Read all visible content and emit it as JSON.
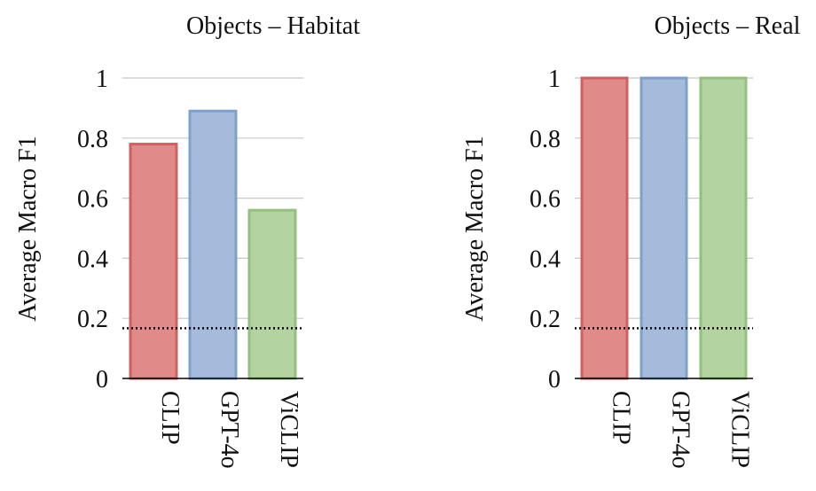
{
  "chart_data": [
    {
      "type": "bar",
      "title": "Objects – Habitat",
      "ylabel": "Average Macro F1",
      "xlabel": "",
      "categories": [
        "CLIP",
        "GPT-4o",
        "ViCLIP"
      ],
      "values": [
        0.78,
        0.89,
        0.56
      ],
      "ylim": [
        0,
        1
      ],
      "yticks": [
        0,
        0.2,
        0.4,
        0.6,
        0.8,
        1
      ],
      "ytick_labels": [
        "0",
        "0.2",
        "0.4",
        "0.6",
        "0.8",
        "1"
      ],
      "baseline": 0.167,
      "grid": true,
      "colors": [
        "#e08a89",
        "#a4bbdb",
        "#b3d4a1"
      ],
      "edge_colors": [
        "#d05f5f",
        "#7f9fcc",
        "#93c07c"
      ]
    },
    {
      "type": "bar",
      "title": "Objects – Real",
      "ylabel": "Average Macro F1",
      "xlabel": "",
      "categories": [
        "CLIP",
        "GPT-4o",
        "ViCLIP"
      ],
      "values": [
        1.0,
        1.0,
        1.0
      ],
      "ylim": [
        0,
        1
      ],
      "yticks": [
        0,
        0.2,
        0.4,
        0.6,
        0.8,
        1
      ],
      "ytick_labels": [
        "0",
        "0.2",
        "0.4",
        "0.6",
        "0.8",
        "1"
      ],
      "baseline": 0.167,
      "grid": true,
      "colors": [
        "#e08a89",
        "#a4bbdb",
        "#b3d4a1"
      ],
      "edge_colors": [
        "#d05f5f",
        "#7f9fcc",
        "#93c07c"
      ]
    }
  ]
}
